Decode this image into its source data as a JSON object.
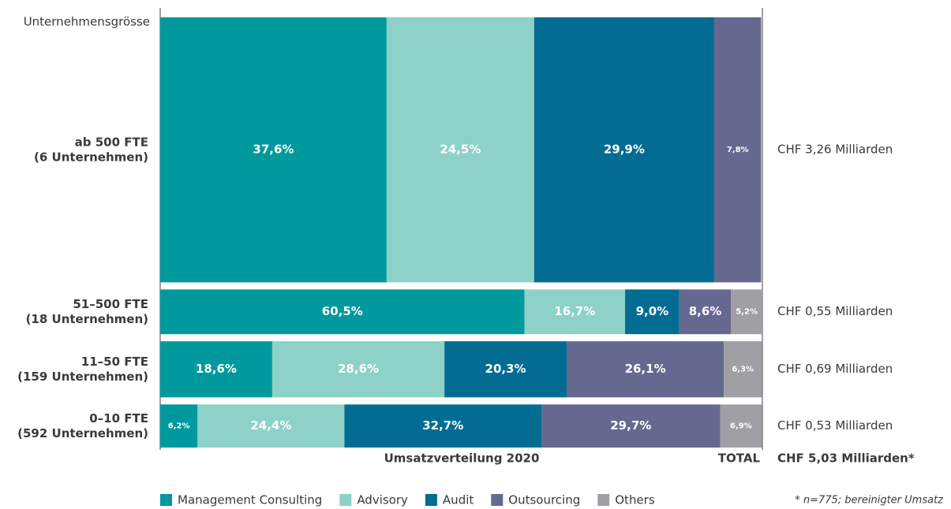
{
  "chart_data": {
    "type": "mekko",
    "title": "Umsatzverteilung 2020",
    "y_label": "Unternehmensgrösse",
    "categories": [
      "ab 500 FTE",
      "51–500 FTE",
      "11–50 FTE",
      "0–10 FTE"
    ],
    "category_notes": [
      "(6 Unternehmen)",
      "(18 Unternehmen)",
      "(159 Unternehmen)",
      "(592 Unternehmen)"
    ],
    "xlim": [
      0,
      100
    ],
    "series": [
      {
        "name": "Management Consulting",
        "color": "#00999e",
        "values": [
          37.6,
          60.5,
          18.6,
          6.2
        ],
        "value_labels": [
          "37,6%",
          "60,5%",
          "18,6%",
          "6,2%"
        ]
      },
      {
        "name": "Advisory",
        "color": "#8dd1c8",
        "values": [
          24.5,
          16.7,
          28.6,
          24.4
        ],
        "value_labels": [
          "24,5%",
          "16,7%",
          "28,6%",
          "24,4%"
        ]
      },
      {
        "name": "Audit",
        "color": "#036c93",
        "values": [
          29.9,
          9.0,
          20.3,
          32.7
        ],
        "value_labels": [
          "29,9%",
          "9,0%",
          "20,3%",
          "32,7%"
        ]
      },
      {
        "name": "Outsourcing",
        "color": "#65698f",
        "values": [
          7.8,
          8.6,
          26.1,
          29.7
        ],
        "value_labels": [
          "7,8%",
          "8,6%",
          "26,1%",
          "29,7%"
        ]
      },
      {
        "name": "Others",
        "color": "#a0a0a4",
        "values": [
          null,
          5.2,
          6.3,
          6.9
        ],
        "value_labels": [
          null,
          "5,2%",
          "6,3%",
          "6,9%"
        ]
      }
    ],
    "totals": [
      3.26,
      0.55,
      0.69,
      0.53
    ],
    "total_labels": [
      "CHF 3,26 Milliarden",
      "CHF 0,55 Milliarden",
      "CHF 0,69 Milliarden",
      "CHF 0,53 Milliarden"
    ],
    "grand_total_title": "TOTAL",
    "grand_total": 5.03,
    "grand_total_label": "CHF 5,03 Milliarden*",
    "footnote": "* n=775; bereinigter Umsatz"
  }
}
